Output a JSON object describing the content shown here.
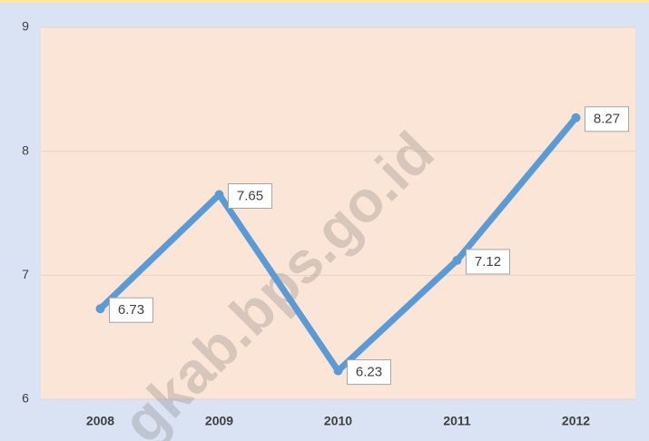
{
  "chart_data": {
    "type": "line",
    "categories": [
      "2008",
      "2009",
      "2010",
      "2011",
      "2012"
    ],
    "values": [
      6.73,
      7.65,
      6.23,
      7.12,
      8.27
    ],
    "color": "#5b9bd5",
    "ylim": [
      6,
      9
    ],
    "yticks": [
      6,
      7,
      8,
      9
    ],
    "grid": true,
    "watermark": "gkab.bps.go.id"
  }
}
